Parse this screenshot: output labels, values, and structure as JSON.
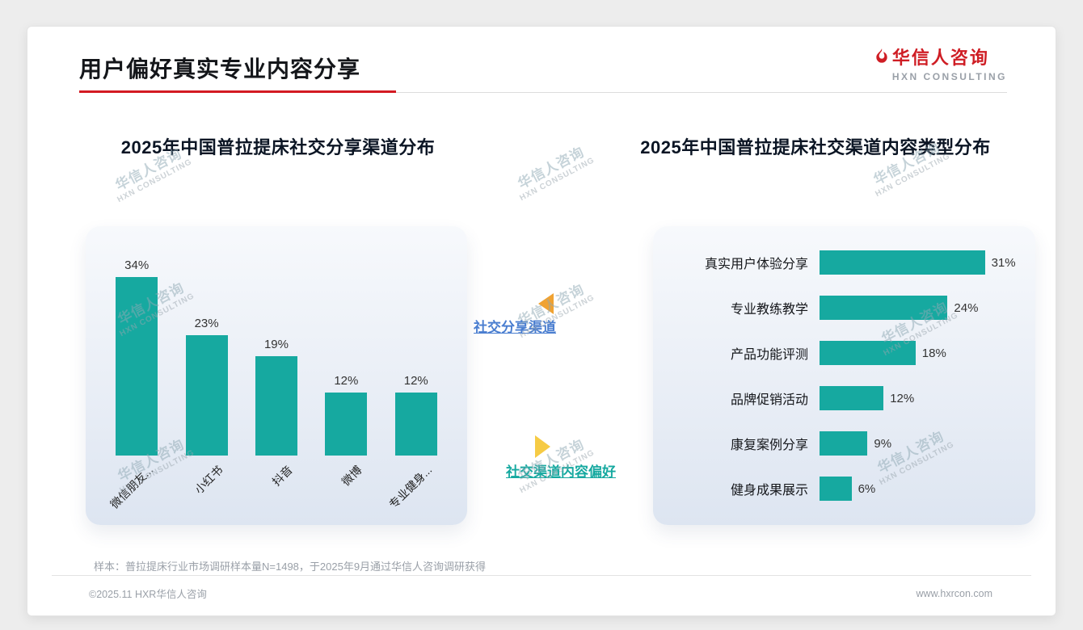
{
  "page": {
    "title": "用户偏好真实专业内容分享",
    "logo_cn": "华信人咨询",
    "logo_en": "HXN CONSULTING",
    "watermark_cn": "华信人咨询",
    "watermark_en": "HXN CONSULTING",
    "footnote": "样本：普拉提床行业市场调研样本量N=1498，于2025年9月通过华信人咨询调研获得",
    "copyright": "©2025.11 HXR华信人咨询",
    "website": "www.hxrcon.com"
  },
  "annotations": {
    "top": "社交分享渠道",
    "bottom": "社交渠道内容偏好"
  },
  "colors": {
    "bar_teal": "#16a9a0",
    "accent_red": "#d31a22",
    "annotation_blue": "#4a7ed0",
    "annotation_teal": "#16a9a0",
    "arrow_orange": "#f0a232",
    "arrow_yellow": "#f6cb45"
  },
  "chart_data": [
    {
      "type": "bar",
      "orientation": "vertical",
      "title": "2025年中国普拉提床社交分享渠道分布",
      "categories": [
        "微信朋友...",
        "小红书",
        "抖音",
        "微博",
        "专业健身..."
      ],
      "values": [
        34,
        23,
        19,
        12,
        12
      ],
      "unit": "%",
      "ylim": [
        0,
        40
      ],
      "grid": false,
      "legend": false
    },
    {
      "type": "bar",
      "orientation": "horizontal",
      "title": "2025年中国普拉提床社交渠道内容类型分布",
      "categories": [
        "真实用户体验分享",
        "专业教练教学",
        "产品功能评测",
        "品牌促销活动",
        "康复案例分享",
        "健身成果展示"
      ],
      "values": [
        31,
        24,
        18,
        12,
        9,
        6
      ],
      "unit": "%",
      "xlim": [
        0,
        35
      ],
      "grid": false,
      "legend": false
    }
  ]
}
